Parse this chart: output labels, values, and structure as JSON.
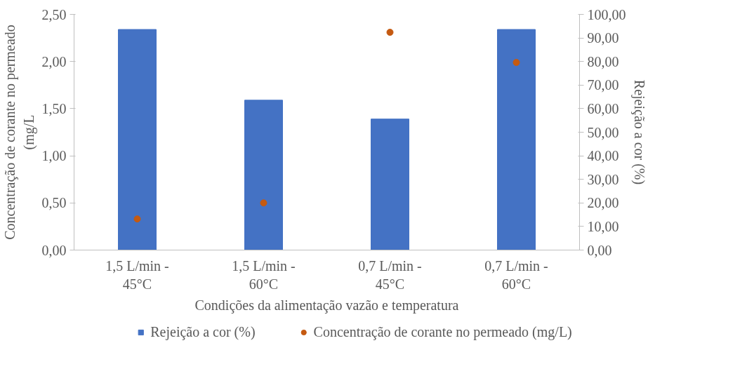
{
  "chart_data": {
    "type": "bar",
    "xlabel": "Condições da alimentação vazão e temperatura",
    "ylabel": "Concentração de corante no permeado\n(mg/L",
    "y2label": "Rejeição a cor (%)",
    "categories": [
      "1,5 L/min -\n45°C",
      "1,5 L/min -\n60°C",
      "0,7 L/min -\n45°C",
      "0,7 L/min -\n60°C"
    ],
    "series": [
      {
        "name": "Rejeição a cor (%)",
        "axis": "y2",
        "color": "#4472c4",
        "values": [
          93.6,
          63.6,
          55.6,
          93.6
        ]
      },
      {
        "name": "Concentração de corante no permeado (mg/L)",
        "type": "scatter",
        "marker": "circle",
        "color": "#c55a11",
        "values": [
          0.33,
          0.5,
          2.31,
          1.99
        ]
      }
    ],
    "ylim": [
      0,
      2.5
    ],
    "yticks": [
      {
        "value": 0,
        "label": "0,00"
      },
      {
        "value": 0.5,
        "label": "0,50"
      },
      {
        "value": 1,
        "label": "1,00"
      },
      {
        "value": 1.5,
        "label": "1,50"
      },
      {
        "value": 2,
        "label": "2,00"
      },
      {
        "value": 2.5,
        "label": "2,50"
      }
    ],
    "y2lim": [
      0,
      100
    ],
    "y2ticks": [
      {
        "value": 0,
        "label": "0,00"
      },
      {
        "value": 10,
        "label": "10,00"
      },
      {
        "value": 20,
        "label": "20,00"
      },
      {
        "value": 30,
        "label": "30,00"
      },
      {
        "value": 40,
        "label": "40,00"
      },
      {
        "value": 50,
        "label": "50,00"
      },
      {
        "value": 60,
        "label": "60,00"
      },
      {
        "value": 70,
        "label": "70,00"
      },
      {
        "value": 80,
        "label": "80,00"
      },
      {
        "value": 90,
        "label": "90,00"
      },
      {
        "value": 100,
        "label": "100,00"
      }
    ],
    "grid": false,
    "legend": "bottom"
  }
}
